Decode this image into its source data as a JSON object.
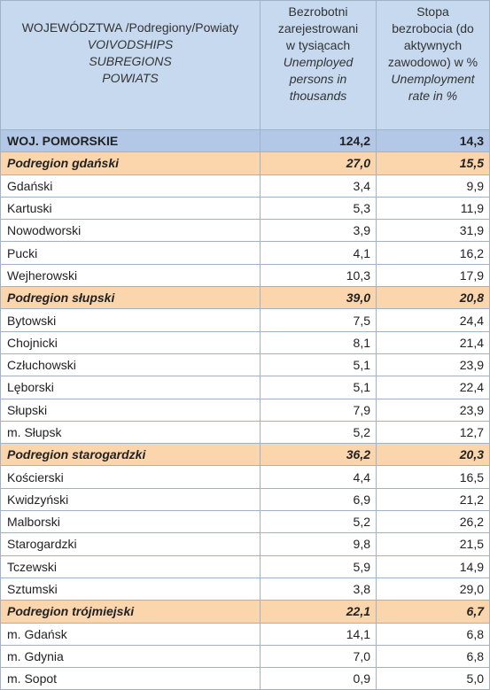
{
  "header": {
    "col1": {
      "pl": "WOJEWÓDZTWA /Podregiony/Powiaty",
      "en": [
        "VOIVODSHIPS",
        "SUBREGIONS",
        "POWIATS"
      ]
    },
    "col2": {
      "pl": [
        "Bezrobotni",
        "zarejestrowani",
        "w tysiącach"
      ],
      "en": [
        "Unemployed",
        "persons in",
        "thousands"
      ]
    },
    "col3": {
      "pl": [
        "Stopa",
        "bezrobocia  (do",
        "aktywnych",
        "zawodowo) w %"
      ],
      "en": [
        "Unemployment",
        "rate in  %"
      ]
    }
  },
  "rows": [
    {
      "name": "WOJ. POMORSKIE",
      "unemployed": "124,2",
      "rate": "14,3",
      "type": "total"
    },
    {
      "name": "Podregion gdański",
      "unemployed": "27,0",
      "rate": "15,5",
      "type": "sub"
    },
    {
      "name": "Gdański",
      "unemployed": "3,4",
      "rate": "9,9",
      "type": "powiat"
    },
    {
      "name": "Kartuski",
      "unemployed": "5,3",
      "rate": "11,9",
      "type": "powiat"
    },
    {
      "name": "Nowodworski",
      "unemployed": "3,9",
      "rate": "31,9",
      "type": "powiat"
    },
    {
      "name": "Pucki",
      "unemployed": "4,1",
      "rate": "16,2",
      "type": "powiat"
    },
    {
      "name": "Wejherowski",
      "unemployed": "10,3",
      "rate": "17,9",
      "type": "powiat"
    },
    {
      "name": "Podregion słupski",
      "unemployed": "39,0",
      "rate": "20,8",
      "type": "sub"
    },
    {
      "name": "Bytowski",
      "unemployed": "7,5",
      "rate": "24,4",
      "type": "powiat"
    },
    {
      "name": "Chojnicki",
      "unemployed": "8,1",
      "rate": "21,4",
      "type": "powiat"
    },
    {
      "name": "Człuchowski",
      "unemployed": "5,1",
      "rate": "23,9",
      "type": "powiat"
    },
    {
      "name": "Lęborski",
      "unemployed": "5,1",
      "rate": "22,4",
      "type": "powiat"
    },
    {
      "name": "Słupski",
      "unemployed": "7,9",
      "rate": "23,9",
      "type": "powiat"
    },
    {
      "name": "m. Słupsk",
      "unemployed": "5,2",
      "rate": "12,7",
      "type": "powiat"
    },
    {
      "name": "Podregion starogardzki",
      "unemployed": "36,2",
      "rate": "20,3",
      "type": "sub"
    },
    {
      "name": "Kościerski",
      "unemployed": "4,4",
      "rate": "16,5",
      "type": "powiat"
    },
    {
      "name": "Kwidzyński",
      "unemployed": "6,9",
      "rate": "21,2",
      "type": "powiat"
    },
    {
      "name": "Malborski",
      "unemployed": "5,2",
      "rate": "26,2",
      "type": "powiat"
    },
    {
      "name": "Starogardzki",
      "unemployed": "9,8",
      "rate": "21,5",
      "type": "powiat"
    },
    {
      "name": "Tczewski",
      "unemployed": "5,9",
      "rate": "14,9",
      "type": "powiat"
    },
    {
      "name": "Sztumski",
      "unemployed": "3,8",
      "rate": "29,0",
      "type": "powiat"
    },
    {
      "name": "Podregion trójmiejski",
      "unemployed": "22,1",
      "rate": "6,7",
      "type": "sub"
    },
    {
      "name": "m. Gdańsk",
      "unemployed": "14,1",
      "rate": "6,8",
      "type": "powiat"
    },
    {
      "name": "m. Gdynia",
      "unemployed": "7,0",
      "rate": "6,8",
      "type": "powiat"
    },
    {
      "name": "m. Sopot",
      "unemployed": "0,9",
      "rate": "5,0",
      "type": "powiat"
    }
  ],
  "colors": {
    "header_bg": "#c6d9ef",
    "total_bg": "#b3c8e6",
    "subregion_bg": "#fbd6ad",
    "border": "#9eb3c8"
  }
}
